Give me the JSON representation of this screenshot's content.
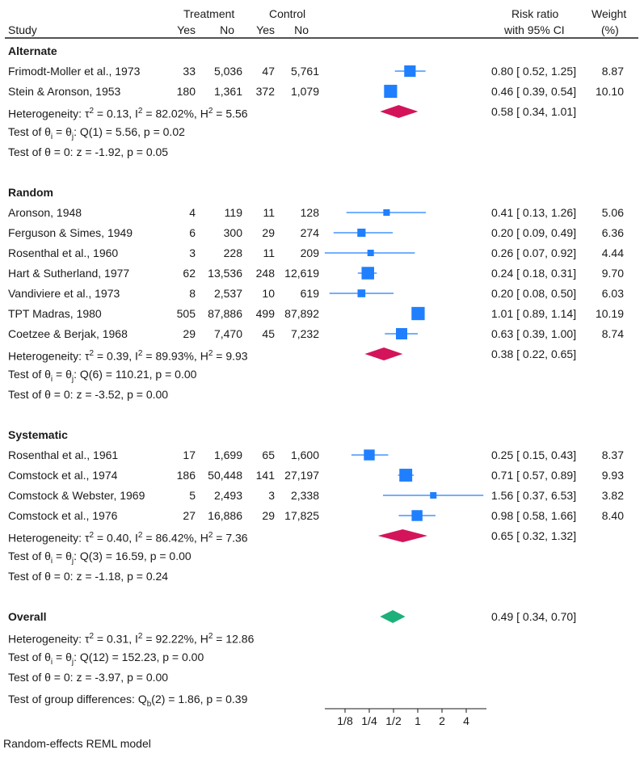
{
  "header": {
    "study": "Study",
    "treatment": "Treatment",
    "control": "Control",
    "yes": "Yes",
    "no": "No",
    "risk_ratio": "Risk ratio",
    "ci": "with 95% CI",
    "weight": "Weight",
    "weight_unit": "(%)"
  },
  "footer": {
    "group_test": "Test of group differences: Q",
    "group_test_sub": "b",
    "group_test_rest": "(2) = 1.86, p = 0.39",
    "model": "Random-effects REML model"
  },
  "colors": {
    "study_marker": "#1f7fff",
    "subgroup_diamond": "#d4145a",
    "overall_diamond": "#1db07a"
  },
  "chart_data": {
    "type": "forest",
    "measure": "Risk ratio",
    "x_scale": "log",
    "x_ticks": [
      {
        "value": 0.125,
        "label": "1/8"
      },
      {
        "value": 0.25,
        "label": "1/4"
      },
      {
        "value": 0.5,
        "label": "1/2"
      },
      {
        "value": 1,
        "label": "1"
      },
      {
        "value": 2,
        "label": "2"
      },
      {
        "value": 4,
        "label": "4"
      }
    ],
    "groups": [
      {
        "name": "Alternate",
        "studies": [
          {
            "study": "Frimodt-Moller et al., 1973",
            "t_yes": "33",
            "t_no": "5,036",
            "c_yes": "47",
            "c_no": "5,761",
            "rr": 0.8,
            "lo": 0.52,
            "hi": 1.25,
            "ci_text": "0.80 [ 0.52,  1.25]",
            "weight": "8.87"
          },
          {
            "study": "Stein & Aronson, 1953",
            "t_yes": "180",
            "t_no": "1,361",
            "c_yes": "372",
            "c_no": "1,079",
            "rr": 0.46,
            "lo": 0.39,
            "hi": 0.54,
            "ci_text": "0.46 [ 0.39,  0.54]",
            "weight": "10.10"
          }
        ],
        "summary": {
          "rr": 0.58,
          "lo": 0.34,
          "hi": 1.01,
          "ci_text": "0.58 [ 0.34,  1.01]"
        },
        "het_tau": "2",
        "het_rest": " = 0.13, I",
        "het_i": "2",
        "het_rest2": " = 82.02%, H",
        "het_h": "2",
        "het_rest3": " = 5.56",
        "q_rest": ": Q(1) = 5.56, p = 0.02",
        "z_text": "Test of θ = 0: z = -1.92, p = 0.05"
      },
      {
        "name": "Random",
        "studies": [
          {
            "study": "Aronson, 1948",
            "t_yes": "4",
            "t_no": "119",
            "c_yes": "11",
            "c_no": "128",
            "rr": 0.41,
            "lo": 0.13,
            "hi": 1.26,
            "ci_text": "0.41 [ 0.13,  1.26]",
            "weight": "5.06"
          },
          {
            "study": "Ferguson & Simes, 1949",
            "t_yes": "6",
            "t_no": "300",
            "c_yes": "29",
            "c_no": "274",
            "rr": 0.2,
            "lo": 0.09,
            "hi": 0.49,
            "ci_text": "0.20 [ 0.09,  0.49]",
            "weight": "6.36"
          },
          {
            "study": "Rosenthal et al., 1960",
            "t_yes": "3",
            "t_no": "228",
            "c_yes": "11",
            "c_no": "209",
            "rr": 0.26,
            "lo": 0.07,
            "hi": 0.92,
            "ci_text": "0.26 [ 0.07,  0.92]",
            "weight": "4.44"
          },
          {
            "study": "Hart & Sutherland, 1977",
            "t_yes": "62",
            "t_no": "13,536",
            "c_yes": "248",
            "c_no": "12,619",
            "rr": 0.24,
            "lo": 0.18,
            "hi": 0.31,
            "ci_text": "0.24 [ 0.18,  0.31]",
            "weight": "9.70"
          },
          {
            "study": "Vandiviere et al., 1973",
            "t_yes": "8",
            "t_no": "2,537",
            "c_yes": "10",
            "c_no": "619",
            "rr": 0.2,
            "lo": 0.08,
            "hi": 0.5,
            "ci_text": "0.20 [ 0.08,  0.50]",
            "weight": "6.03"
          },
          {
            "study": "TPT Madras, 1980",
            "t_yes": "505",
            "t_no": "87,886",
            "c_yes": "499",
            "c_no": "87,892",
            "rr": 1.01,
            "lo": 0.89,
            "hi": 1.14,
            "ci_text": "1.01 [ 0.89,  1.14]",
            "weight": "10.19"
          },
          {
            "study": "Coetzee & Berjak, 1968",
            "t_yes": "29",
            "t_no": "7,470",
            "c_yes": "45",
            "c_no": "7,232",
            "rr": 0.63,
            "lo": 0.39,
            "hi": 1.0,
            "ci_text": "0.63 [ 0.39,  1.00]",
            "weight": "8.74"
          }
        ],
        "summary": {
          "rr": 0.38,
          "lo": 0.22,
          "hi": 0.65,
          "ci_text": "0.38 [ 0.22,  0.65]"
        },
        "het_tau": "2",
        "het_rest": " = 0.39, I",
        "het_i": "2",
        "het_rest2": " = 89.93%, H",
        "het_h": "2",
        "het_rest3": " = 9.93",
        "q_rest": ": Q(6) = 110.21, p = 0.00",
        "z_text": "Test of θ = 0: z = -3.52, p = 0.00"
      },
      {
        "name": "Systematic",
        "studies": [
          {
            "study": "Rosenthal et al., 1961",
            "t_yes": "17",
            "t_no": "1,699",
            "c_yes": "65",
            "c_no": "1,600",
            "rr": 0.25,
            "lo": 0.15,
            "hi": 0.43,
            "ci_text": "0.25 [ 0.15,  0.43]",
            "weight": "8.37"
          },
          {
            "study": "Comstock et al., 1974",
            "t_yes": "186",
            "t_no": "50,448",
            "c_yes": "141",
            "c_no": "27,197",
            "rr": 0.71,
            "lo": 0.57,
            "hi": 0.89,
            "ci_text": "0.71 [ 0.57,  0.89]",
            "weight": "9.93"
          },
          {
            "study": "Comstock & Webster, 1969",
            "t_yes": "5",
            "t_no": "2,493",
            "c_yes": "3",
            "c_no": "2,338",
            "rr": 1.56,
            "lo": 0.37,
            "hi": 6.53,
            "ci_text": "1.56 [ 0.37,  6.53]",
            "weight": "3.82"
          },
          {
            "study": "Comstock et al., 1976",
            "t_yes": "27",
            "t_no": "16,886",
            "c_yes": "29",
            "c_no": "17,825",
            "rr": 0.98,
            "lo": 0.58,
            "hi": 1.66,
            "ci_text": "0.98 [ 0.58,  1.66]",
            "weight": "8.40"
          }
        ],
        "summary": {
          "rr": 0.65,
          "lo": 0.32,
          "hi": 1.32,
          "ci_text": "0.65 [ 0.32,  1.32]"
        },
        "het_tau": "2",
        "het_rest": " = 0.40, I",
        "het_i": "2",
        "het_rest2": " = 86.42%, H",
        "het_h": "2",
        "het_rest3": " = 7.36",
        "q_rest": ": Q(3) = 16.59, p = 0.00",
        "z_text": "Test of θ = 0: z = -1.18, p = 0.24"
      }
    ],
    "overall": {
      "name": "Overall",
      "rr": 0.49,
      "lo": 0.34,
      "hi": 0.7,
      "ci_text": "0.49 [ 0.34,  0.70]",
      "het_tau": "2",
      "het_rest": " = 0.31, I",
      "het_i": "2",
      "het_rest2": " = 92.22%, H",
      "het_h": "2",
      "het_rest3": " = 12.86",
      "q_rest": ": Q(12) = 152.23, p = 0.00",
      "z_text": "Test of θ = 0: z = -3.97, p = 0.00"
    }
  }
}
